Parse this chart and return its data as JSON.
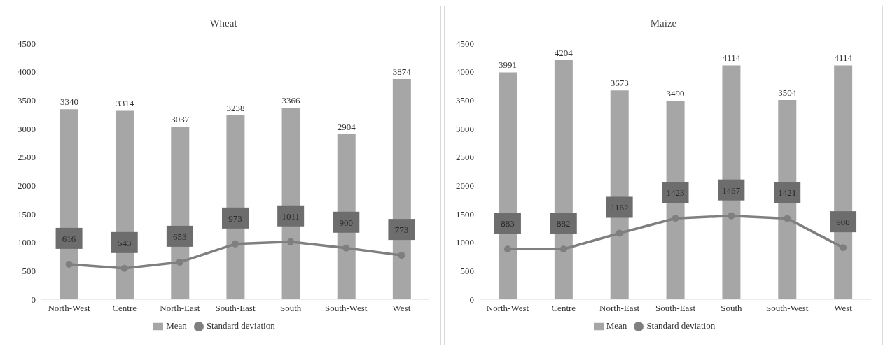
{
  "chart_data": [
    {
      "type": "bar",
      "title": "Wheat",
      "categories": [
        "North-West",
        "Centre",
        "North-East",
        "South-East",
        "South",
        "South-West",
        "West"
      ],
      "ylim": [
        0,
        4500
      ],
      "yticks": [
        0,
        500,
        1000,
        1500,
        2000,
        2500,
        3000,
        3500,
        4000,
        4500
      ],
      "grid": false,
      "legend": "bottom",
      "data_labels": true,
      "marker": "circle",
      "series": [
        {
          "name": "Mean",
          "color": "#a6a6a6",
          "values": [
            3340,
            3314,
            3037,
            3238,
            3366,
            2904,
            3874
          ]
        },
        {
          "name": "Standard deviation",
          "type": "line",
          "color": "#7f7f7f",
          "values": [
            616,
            543,
            653,
            973,
            1011,
            900,
            773
          ]
        }
      ]
    },
    {
      "type": "bar",
      "title": "Maize",
      "categories": [
        "North-West",
        "Centre",
        "North-East",
        "South-East",
        "South",
        "South-West",
        "West"
      ],
      "ylim": [
        0,
        4500
      ],
      "yticks": [
        0,
        500,
        1000,
        1500,
        2000,
        2500,
        3000,
        3500,
        4000,
        4500
      ],
      "grid": false,
      "legend": "bottom",
      "data_labels": true,
      "marker": "circle",
      "series": [
        {
          "name": "Mean",
          "color": "#a6a6a6",
          "values": [
            3991,
            4204,
            3673,
            3490,
            4114,
            3504,
            4114
          ]
        },
        {
          "name": "Standard deviation",
          "type": "line",
          "color": "#7f7f7f",
          "values": [
            883,
            882,
            1162,
            1423,
            1467,
            1421,
            908
          ]
        }
      ]
    }
  ]
}
